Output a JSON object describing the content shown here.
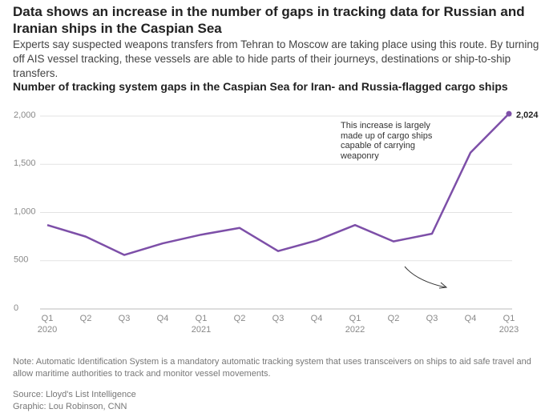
{
  "chart_data": {
    "type": "line",
    "title": "Data shows an increase in the number of gaps in tracking data for Russian and Iranian ships in the Caspian Sea",
    "subtitle": "Experts say suspected weapons transfers from Tehran to Moscow are taking place using this route. By turning off AIS vessel tracking, these vessels are able to hide parts of their journeys, destinations or ship-to-ship transfers.",
    "chart_title": "Number of tracking system gaps in the Caspian Sea for Iran- and Russia-flagged cargo ships",
    "categories": [
      "Q1 2020",
      "Q2",
      "Q3",
      "Q4",
      "Q1 2021",
      "Q2",
      "Q3",
      "Q4",
      "Q1 2022",
      "Q2",
      "Q3",
      "Q4",
      "Q1 2023"
    ],
    "series": [
      {
        "name": "Tracking system gaps",
        "color": "#7d4fa8",
        "values": [
          870,
          750,
          560,
          680,
          770,
          840,
          600,
          710,
          870,
          700,
          780,
          1620,
          2024
        ],
        "value_labels": [
          null,
          null,
          null,
          null,
          null,
          null,
          null,
          null,
          null,
          null,
          null,
          null,
          "2,024"
        ]
      }
    ],
    "ylim": [
      0,
      2000
    ],
    "yticks": [
      0,
      500,
      {
        "value": 1000,
        "label": "1,000"
      },
      {
        "value": 1500,
        "label": "1,500"
      },
      {
        "value": 2000,
        "label": "2,000"
      }
    ],
    "grid": true,
    "annotation": "This increase is largely made up of cargo ships capable of carrying weaponry",
    "note": "Note: Automatic Identification System is a mandatory automatic tracking system that uses transceivers on ships to aid safe travel and allow maritime authorities to track and monitor vessel movements.",
    "source": "Source: Lloyd's List Intelligence",
    "credit": "Graphic: Lou Robinson, CNN"
  }
}
